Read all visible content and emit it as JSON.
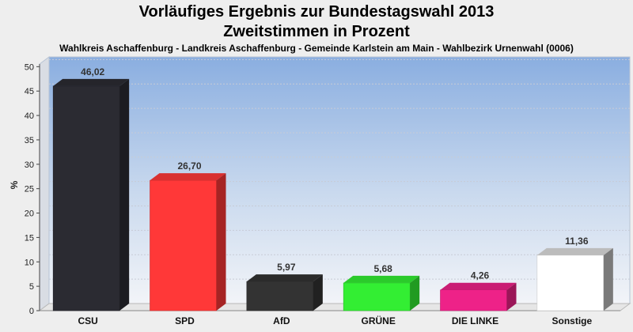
{
  "title": "Vorläufiges Ergebnis zur Bundestagswahl 2013",
  "subtitle": "Zweitstimmen in Prozent",
  "description": "Wahlkreis Aschaffenburg - Landkreis Aschaffenburg - Gemeinde Karlstein am Main - Wahlbezirk Urnenwahl (0006)",
  "chart_data": {
    "type": "bar",
    "title": "Vorläufiges Ergebnis zur Bundestagswahl 2013",
    "subtitle": "Zweitstimmen in Prozent",
    "xlabel": "",
    "ylabel": "%",
    "ylim": [
      0,
      52
    ],
    "yticks": [
      0,
      5,
      10,
      15,
      20,
      25,
      30,
      35,
      40,
      45,
      50
    ],
    "grid": true,
    "categories": [
      "CSU",
      "SPD",
      "AfD",
      "GRÜNE",
      "DIE LINKE",
      "Sonstige"
    ],
    "values": [
      46.02,
      26.7,
      5.97,
      5.68,
      4.26,
      11.36
    ],
    "value_labels": [
      "46,02",
      "26,70",
      "5,97",
      "5,68",
      "4,26",
      "11,36"
    ],
    "colors": [
      "#2b2b32",
      "#ff3838",
      "#333333",
      "#33ee33",
      "#ee2288",
      "#ffffff"
    ]
  }
}
